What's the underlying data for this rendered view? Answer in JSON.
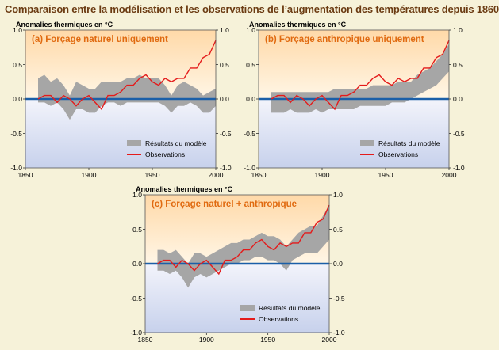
{
  "page": {
    "title": "Comparaison entre la modélisation et les observations de l’augmentation des températures depuis 1860",
    "colors": {
      "title": "#6b3b12",
      "panel_title": "#e06a10",
      "model_band": "#a6a6a6",
      "observations": "#e41b1b",
      "zero_line": "#1b5fa8",
      "top_fill": "#ffd9a8",
      "bottom_fill": "#c7d1ec"
    }
  },
  "chart_data": [
    {
      "type": "area",
      "panel": "a",
      "title": "(a) Forçage naturel uniquement",
      "ylabel": "Anomalies thermiques en °C",
      "xlim": [
        1850,
        2000
      ],
      "ylim": [
        -1.0,
        1.0
      ],
      "xticks": [
        "1850",
        "1900",
        "1950",
        "2000"
      ],
      "yticks_left": [
        "1.0",
        "0.5",
        "0.0",
        "-0.5",
        "-1.0"
      ],
      "yticks_right": [
        "1.0",
        "0.5",
        "0.0",
        "-0.5",
        "-1.0"
      ],
      "legend": [
        "Résultats du modèle",
        "Observations"
      ],
      "series": [
        {
          "name": "Résultats du modèle",
          "x": [
            1860,
            1865,
            1870,
            1875,
            1880,
            1885,
            1890,
            1895,
            1900,
            1905,
            1910,
            1915,
            1920,
            1925,
            1930,
            1935,
            1940,
            1945,
            1950,
            1955,
            1960,
            1965,
            1970,
            1975,
            1980,
            1985,
            1990,
            1995,
            2000
          ],
          "lower": [
            -0.05,
            -0.05,
            -0.1,
            -0.05,
            -0.15,
            -0.3,
            -0.15,
            -0.15,
            -0.2,
            -0.2,
            -0.1,
            -0.05,
            -0.05,
            -0.1,
            -0.05,
            -0.05,
            -0.05,
            -0.05,
            -0.05,
            -0.05,
            -0.1,
            -0.2,
            -0.1,
            -0.1,
            -0.05,
            -0.1,
            -0.2,
            -0.2,
            -0.1
          ],
          "upper": [
            0.3,
            0.35,
            0.25,
            0.3,
            0.2,
            0.05,
            0.25,
            0.2,
            0.15,
            0.15,
            0.25,
            0.25,
            0.25,
            0.25,
            0.3,
            0.3,
            0.35,
            0.3,
            0.3,
            0.3,
            0.2,
            0.05,
            0.2,
            0.25,
            0.2,
            0.15,
            0.05,
            0.1,
            0.15
          ]
        },
        {
          "name": "Observations",
          "x": [
            1860,
            1865,
            1870,
            1875,
            1880,
            1885,
            1890,
            1895,
            1900,
            1905,
            1910,
            1915,
            1920,
            1925,
            1930,
            1935,
            1940,
            1945,
            1950,
            1955,
            1960,
            1965,
            1970,
            1975,
            1980,
            1985,
            1990,
            1995,
            2000
          ],
          "values": [
            0.0,
            0.05,
            0.05,
            -0.05,
            0.05,
            0.0,
            -0.1,
            0.0,
            0.05,
            -0.05,
            -0.15,
            0.05,
            0.05,
            0.1,
            0.2,
            0.2,
            0.3,
            0.35,
            0.25,
            0.2,
            0.3,
            0.25,
            0.3,
            0.3,
            0.45,
            0.45,
            0.6,
            0.65,
            0.85
          ]
        }
      ]
    },
    {
      "type": "area",
      "panel": "b",
      "title": "(b) Forçage anthropique uniquement",
      "ylabel": "Anomalies thermiques en °C",
      "xlim": [
        1850,
        2000
      ],
      "ylim": [
        -1.0,
        1.0
      ],
      "xticks": [
        "1850",
        "1900",
        "1950",
        "2000"
      ],
      "yticks_left": [
        "1.0",
        "0.5",
        "0.0",
        "-0.5",
        "-1.0"
      ],
      "yticks_right": [
        "1.0",
        "0.5",
        "0.0",
        "-0.5",
        "-1.0"
      ],
      "legend": [
        "Résultats du modèle",
        "Observations"
      ],
      "series": [
        {
          "name": "Résultats du modèle",
          "x": [
            1860,
            1865,
            1870,
            1875,
            1880,
            1885,
            1890,
            1895,
            1900,
            1905,
            1910,
            1915,
            1920,
            1925,
            1930,
            1935,
            1940,
            1945,
            1950,
            1955,
            1960,
            1965,
            1970,
            1975,
            1980,
            1985,
            1990,
            1995,
            2000
          ],
          "lower": [
            -0.2,
            -0.2,
            -0.2,
            -0.15,
            -0.2,
            -0.2,
            -0.2,
            -0.15,
            -0.2,
            -0.15,
            -0.15,
            -0.15,
            -0.15,
            -0.15,
            -0.1,
            -0.1,
            -0.1,
            -0.1,
            -0.1,
            -0.05,
            -0.05,
            -0.05,
            0.0,
            0.05,
            0.1,
            0.15,
            0.2,
            0.3,
            0.4
          ],
          "upper": [
            0.1,
            0.1,
            0.1,
            0.1,
            0.1,
            0.1,
            0.1,
            0.1,
            0.1,
            0.1,
            0.15,
            0.15,
            0.15,
            0.15,
            0.15,
            0.15,
            0.2,
            0.2,
            0.2,
            0.2,
            0.25,
            0.25,
            0.25,
            0.35,
            0.4,
            0.45,
            0.55,
            0.65,
            0.8
          ]
        },
        {
          "name": "Observations",
          "x": [
            1860,
            1865,
            1870,
            1875,
            1880,
            1885,
            1890,
            1895,
            1900,
            1905,
            1910,
            1915,
            1920,
            1925,
            1930,
            1935,
            1940,
            1945,
            1950,
            1955,
            1960,
            1965,
            1970,
            1975,
            1980,
            1985,
            1990,
            1995,
            2000
          ],
          "values": [
            0.0,
            0.05,
            0.05,
            -0.05,
            0.05,
            0.0,
            -0.1,
            0.0,
            0.05,
            -0.05,
            -0.15,
            0.05,
            0.05,
            0.1,
            0.2,
            0.2,
            0.3,
            0.35,
            0.25,
            0.2,
            0.3,
            0.25,
            0.3,
            0.3,
            0.45,
            0.45,
            0.6,
            0.65,
            0.85
          ]
        }
      ]
    },
    {
      "type": "area",
      "panel": "c",
      "title": "(c) Forçage naturel + anthropique",
      "ylabel": "Anomalies thermiques en °C",
      "xlim": [
        1850,
        2000
      ],
      "ylim": [
        -1.0,
        1.0
      ],
      "xticks": [
        "1850",
        "1900",
        "1950",
        "2000"
      ],
      "yticks_left": [
        "1.0",
        "0.5",
        "0.0",
        "-0.5",
        "-1.0"
      ],
      "yticks_right": [
        "1.0",
        "0.5",
        "0.0",
        "-0.5",
        "-1.0"
      ],
      "legend": [
        "Résultats du modèle",
        "Observations"
      ],
      "series": [
        {
          "name": "Résultats du modèle",
          "x": [
            1860,
            1865,
            1870,
            1875,
            1880,
            1885,
            1890,
            1895,
            1900,
            1905,
            1910,
            1915,
            1920,
            1925,
            1930,
            1935,
            1940,
            1945,
            1950,
            1955,
            1960,
            1965,
            1970,
            1975,
            1980,
            1985,
            1990,
            1995,
            2000
          ],
          "lower": [
            -0.1,
            -0.1,
            -0.15,
            -0.1,
            -0.2,
            -0.35,
            -0.2,
            -0.15,
            -0.2,
            -0.15,
            -0.1,
            -0.05,
            0.0,
            0.0,
            0.05,
            0.05,
            0.1,
            0.1,
            0.05,
            0.05,
            0.0,
            -0.1,
            0.05,
            0.1,
            0.15,
            0.15,
            0.15,
            0.25,
            0.35
          ],
          "upper": [
            0.2,
            0.2,
            0.15,
            0.2,
            0.1,
            0.0,
            0.15,
            0.15,
            0.1,
            0.15,
            0.2,
            0.25,
            0.3,
            0.3,
            0.35,
            0.35,
            0.4,
            0.45,
            0.4,
            0.4,
            0.35,
            0.25,
            0.35,
            0.45,
            0.5,
            0.55,
            0.55,
            0.7,
            0.85
          ]
        },
        {
          "name": "Observations",
          "x": [
            1860,
            1865,
            1870,
            1875,
            1880,
            1885,
            1890,
            1895,
            1900,
            1905,
            1910,
            1915,
            1920,
            1925,
            1930,
            1935,
            1940,
            1945,
            1950,
            1955,
            1960,
            1965,
            1970,
            1975,
            1980,
            1985,
            1990,
            1995,
            2000
          ],
          "values": [
            0.0,
            0.05,
            0.05,
            -0.05,
            0.05,
            0.0,
            -0.1,
            0.0,
            0.05,
            -0.05,
            -0.15,
            0.05,
            0.05,
            0.1,
            0.2,
            0.2,
            0.3,
            0.35,
            0.25,
            0.2,
            0.3,
            0.25,
            0.3,
            0.3,
            0.45,
            0.45,
            0.6,
            0.65,
            0.85
          ]
        }
      ]
    }
  ]
}
